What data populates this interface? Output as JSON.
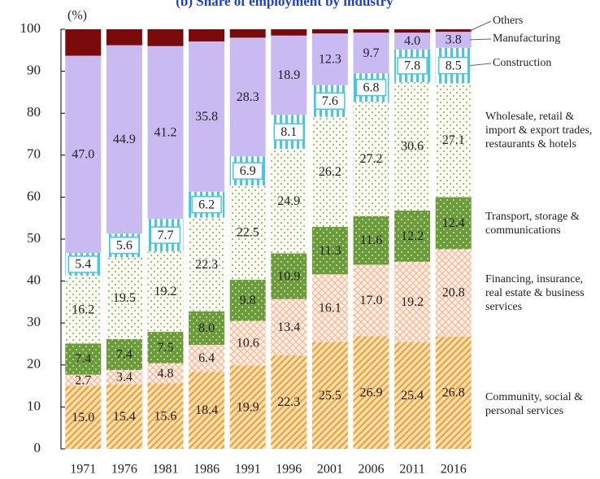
{
  "chart_data": {
    "type": "stacked_bar",
    "title": "(b) Share of employment by industry",
    "ylabel": "(%)",
    "categories": [
      "1971",
      "1976",
      "1981",
      "1986",
      "1991",
      "1996",
      "2001",
      "2006",
      "2011",
      "2016"
    ],
    "ylim": [
      0,
      100
    ],
    "yticks": [
      0,
      10,
      20,
      30,
      40,
      50,
      60,
      70,
      80,
      90,
      100
    ],
    "series": [
      {
        "name": "Community, social & personal services",
        "color": "#fde2bd",
        "pattern": "hatch",
        "pattern_color": "#f2a437",
        "values": [
          15.0,
          15.4,
          15.6,
          18.4,
          19.9,
          22.3,
          25.5,
          26.9,
          25.4,
          26.8
        ],
        "value_labels": [
          "15.0",
          "15.4",
          "15.6",
          "18.4",
          "19.9",
          "22.3",
          "25.5",
          "26.9",
          "25.4",
          "26.8"
        ]
      },
      {
        "name": "Financing, insurance, real estate & business services",
        "color": "#fdf0e6",
        "pattern": "cross",
        "pattern_color": "#f3b996",
        "values": [
          2.7,
          3.4,
          4.8,
          6.4,
          10.6,
          13.4,
          16.1,
          17.0,
          19.2,
          20.8
        ],
        "value_labels": [
          "2.7",
          "3.4",
          "4.8",
          "6.4",
          "10.6",
          "13.4",
          "16.1",
          "17.0",
          "19.2",
          "20.8"
        ]
      },
      {
        "name": "Transport, storage & communications",
        "color": "#6c9b3c",
        "pattern": "dots",
        "pattern_color": "#b9d794",
        "values": [
          7.4,
          7.4,
          7.5,
          8.0,
          9.8,
          10.9,
          11.3,
          11.6,
          12.2,
          12.4
        ],
        "value_labels": [
          "7.4",
          "7.4",
          "7.5",
          "8.0",
          "9.8",
          "10.9",
          "11.3",
          "11.6",
          "12.2",
          "12.4"
        ]
      },
      {
        "name": "Wholesale, retail & import & export trades, restaurants & hotels",
        "color": "#fbfdf4",
        "pattern": "dots",
        "pattern_color": "#93b86a",
        "values": [
          16.2,
          19.5,
          19.2,
          22.3,
          22.5,
          24.9,
          26.2,
          27.2,
          30.6,
          27.1
        ],
        "value_labels": [
          "16.2",
          "19.5",
          "19.2",
          "22.3",
          "22.5",
          "24.9",
          "26.2",
          "27.2",
          "30.6",
          "27.1"
        ]
      },
      {
        "name": "Construction",
        "color": "#ffffff",
        "pattern": "stripes",
        "pattern_color": "#45c8e2",
        "values": [
          5.4,
          5.6,
          7.7,
          6.2,
          6.9,
          8.1,
          7.6,
          6.8,
          7.8,
          8.5
        ],
        "value_labels": [
          "5.4",
          "5.6",
          "7.7",
          "6.2",
          "6.9",
          "8.1",
          "7.6",
          "6.8",
          "7.8",
          "8.5"
        ]
      },
      {
        "name": "Manufacturing",
        "color": "#c9bbf1",
        "pattern": "solid",
        "values": [
          47.0,
          44.9,
          41.2,
          35.8,
          28.3,
          18.9,
          12.3,
          9.7,
          4.0,
          3.8
        ],
        "value_labels": [
          "47.0",
          "44.9",
          "41.2",
          "35.8",
          "28.3",
          "18.9",
          "12.3",
          "9.7",
          "4.0",
          "3.8"
        ]
      },
      {
        "name": "Others",
        "color": "#7b0a0a",
        "pattern": "solid",
        "values": [
          6.3,
          3.8,
          4.0,
          2.9,
          2.0,
          1.5,
          1.0,
          0.8,
          0.8,
          0.6
        ]
      }
    ]
  }
}
